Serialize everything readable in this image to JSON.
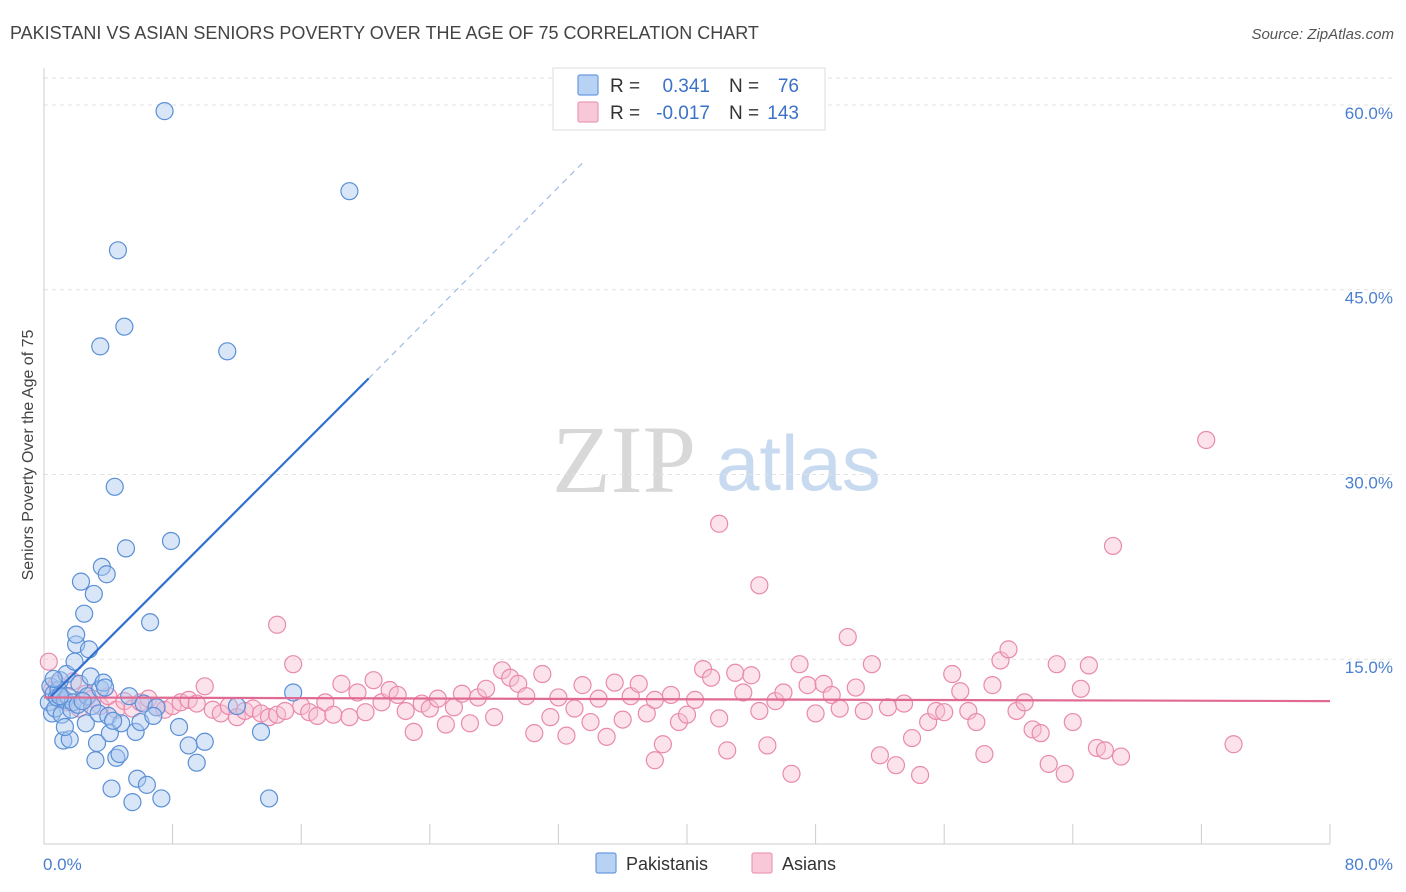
{
  "chart_data": {
    "type": "scatter",
    "title": "PAKISTANI VS ASIAN SENIORS POVERTY OVER THE AGE OF 75 CORRELATION CHART",
    "source": "Source: ZipAtlas.com",
    "ylabel": "Seniors Poverty Over the Age of 75",
    "xlabel": "",
    "xlim": [
      0,
      80
    ],
    "ylim": [
      0,
      63
    ],
    "x_tick_labels": {
      "min": "0.0%",
      "max": "80.0%"
    },
    "y_ticks": [
      {
        "value": 15,
        "label": "15.0%"
      },
      {
        "value": 30,
        "label": "30.0%"
      },
      {
        "value": 45,
        "label": "45.0%"
      },
      {
        "value": 60,
        "label": "60.0%"
      }
    ],
    "legend": {
      "rows": [
        {
          "r_label": "R =",
          "r_value": "0.341",
          "n_label": "N =",
          "n_value": "76"
        },
        {
          "r_label": "R =",
          "r_value": "-0.017",
          "n_label": "N =",
          "n_value": "143"
        }
      ],
      "position": "top-center"
    },
    "watermark": {
      "zip": "ZIP",
      "atlas": "atlas"
    },
    "colors": {
      "pakistanis_fill": "#a9c8f0",
      "pakistanis_stroke": "#5b8fd6",
      "pakistanis_line": "#2f6fd0",
      "asians_fill": "#f7bfd3",
      "asians_stroke": "#e98aab",
      "asians_line": "#e06a93"
    },
    "series": [
      {
        "name": "Pakistanis",
        "trend": {
          "x0": 0.3,
          "y0": 11.8,
          "x1": 20.2,
          "y1": 37.8,
          "dash_to_x": 33.5,
          "dash_to_y": 55.3
        },
        "points": [
          [
            0.3,
            11.5
          ],
          [
            0.4,
            12.8
          ],
          [
            0.5,
            10.6
          ],
          [
            0.6,
            12.2
          ],
          [
            0.7,
            11.0
          ],
          [
            0.8,
            11.9
          ],
          [
            0.9,
            12.5
          ],
          [
            1.0,
            13.3
          ],
          [
            1.1,
            10.5
          ],
          [
            1.2,
            8.4
          ],
          [
            1.3,
            11.7
          ],
          [
            1.4,
            13.8
          ],
          [
            1.5,
            12.0
          ],
          [
            1.6,
            8.5
          ],
          [
            1.7,
            10.9
          ],
          [
            1.8,
            11.5
          ],
          [
            1.9,
            14.8
          ],
          [
            2.0,
            16.2
          ],
          [
            2.1,
            11.3
          ],
          [
            2.2,
            13.0
          ],
          [
            2.3,
            21.3
          ],
          [
            2.5,
            18.7
          ],
          [
            2.6,
            9.8
          ],
          [
            2.7,
            12.0
          ],
          [
            2.8,
            15.8
          ],
          [
            2.9,
            13.6
          ],
          [
            3.0,
            11.2
          ],
          [
            3.1,
            20.3
          ],
          [
            3.2,
            6.8
          ],
          [
            3.3,
            8.2
          ],
          [
            3.4,
            10.6
          ],
          [
            3.5,
            12.6
          ],
          [
            3.6,
            22.5
          ],
          [
            3.7,
            13.1
          ],
          [
            3.8,
            12.7
          ],
          [
            3.9,
            21.9
          ],
          [
            4.0,
            10.4
          ],
          [
            4.1,
            9.0
          ],
          [
            4.2,
            4.5
          ],
          [
            4.4,
            29.0
          ],
          [
            4.5,
            7.0
          ],
          [
            4.6,
            48.2
          ],
          [
            4.7,
            7.3
          ],
          [
            4.8,
            9.8
          ],
          [
            5.0,
            42.0
          ],
          [
            5.1,
            24.0
          ],
          [
            5.3,
            12.0
          ],
          [
            5.5,
            3.4
          ],
          [
            5.7,
            9.1
          ],
          [
            5.8,
            5.3
          ],
          [
            6.0,
            9.9
          ],
          [
            6.2,
            11.4
          ],
          [
            6.4,
            4.8
          ],
          [
            6.6,
            18.0
          ],
          [
            7.0,
            11.1
          ],
          [
            7.3,
            3.7
          ],
          [
            7.5,
            59.5
          ],
          [
            7.9,
            24.6
          ],
          [
            8.4,
            9.5
          ],
          [
            9.0,
            8.0
          ],
          [
            9.5,
            6.6
          ],
          [
            10.0,
            8.3
          ],
          [
            11.4,
            40.0
          ],
          [
            13.5,
            9.1
          ],
          [
            14.0,
            3.7
          ],
          [
            15.5,
            12.3
          ],
          [
            3.5,
            40.4
          ],
          [
            6.8,
            10.4
          ],
          [
            1.0,
            12.0
          ],
          [
            2.4,
            11.6
          ],
          [
            0.6,
            13.4
          ],
          [
            1.3,
            9.5
          ],
          [
            2.0,
            17.0
          ],
          [
            19.0,
            53.0
          ],
          [
            12.0,
            11.2
          ],
          [
            4.3,
            10.0
          ]
        ]
      },
      {
        "name": "Asians",
        "trend": {
          "x0": 0,
          "y0": 11.9,
          "x1": 80,
          "y1": 11.6
        },
        "points": [
          [
            0.3,
            14.8
          ],
          [
            0.5,
            12.5
          ],
          [
            0.8,
            13.0
          ],
          [
            1.0,
            12.1
          ],
          [
            1.4,
            11.5
          ],
          [
            1.8,
            13.2
          ],
          [
            2.2,
            11.0
          ],
          [
            2.6,
            12.2
          ],
          [
            3.0,
            11.8
          ],
          [
            3.5,
            11.2
          ],
          [
            4.0,
            12.0
          ],
          [
            4.5,
            10.9
          ],
          [
            5.0,
            11.6
          ],
          [
            5.5,
            11.0
          ],
          [
            6.0,
            11.5
          ],
          [
            6.5,
            11.8
          ],
          [
            7.0,
            11.1
          ],
          [
            7.5,
            10.9
          ],
          [
            8.0,
            11.2
          ],
          [
            8.5,
            11.5
          ],
          [
            9.0,
            11.7
          ],
          [
            9.5,
            11.4
          ],
          [
            10.0,
            12.8
          ],
          [
            10.5,
            10.9
          ],
          [
            11.0,
            10.6
          ],
          [
            11.5,
            11.2
          ],
          [
            12.0,
            10.3
          ],
          [
            12.5,
            10.8
          ],
          [
            13.0,
            11.0
          ],
          [
            13.5,
            10.6
          ],
          [
            14.0,
            10.3
          ],
          [
            14.5,
            10.5
          ],
          [
            15.0,
            10.8
          ],
          [
            15.5,
            14.6
          ],
          [
            16.0,
            11.2
          ],
          [
            16.5,
            10.7
          ],
          [
            17.0,
            10.4
          ],
          [
            17.5,
            11.5
          ],
          [
            18.0,
            10.5
          ],
          [
            18.5,
            13.0
          ],
          [
            19.0,
            10.3
          ],
          [
            19.5,
            12.3
          ],
          [
            20.0,
            10.7
          ],
          [
            20.5,
            13.3
          ],
          [
            21.0,
            11.5
          ],
          [
            21.5,
            12.5
          ],
          [
            22.0,
            12.1
          ],
          [
            22.5,
            10.8
          ],
          [
            23.0,
            9.1
          ],
          [
            23.5,
            11.4
          ],
          [
            24.0,
            11.0
          ],
          [
            24.5,
            11.8
          ],
          [
            25.0,
            9.7
          ],
          [
            25.5,
            11.1
          ],
          [
            26.0,
            12.2
          ],
          [
            26.5,
            9.8
          ],
          [
            27.0,
            11.9
          ],
          [
            27.5,
            12.6
          ],
          [
            28.0,
            10.3
          ],
          [
            28.5,
            14.1
          ],
          [
            29.0,
            13.5
          ],
          [
            29.5,
            13.0
          ],
          [
            30.0,
            12.0
          ],
          [
            30.5,
            9.0
          ],
          [
            31.0,
            13.8
          ],
          [
            31.5,
            10.3
          ],
          [
            32.0,
            11.9
          ],
          [
            32.5,
            8.8
          ],
          [
            33.0,
            11.0
          ],
          [
            33.5,
            12.9
          ],
          [
            34.0,
            9.9
          ],
          [
            34.5,
            11.8
          ],
          [
            35.0,
            8.7
          ],
          [
            35.5,
            13.1
          ],
          [
            36.0,
            10.1
          ],
          [
            36.5,
            12.0
          ],
          [
            37.0,
            13.0
          ],
          [
            37.5,
            10.6
          ],
          [
            38.0,
            11.7
          ],
          [
            38.5,
            8.1
          ],
          [
            39.0,
            12.1
          ],
          [
            39.5,
            9.9
          ],
          [
            40.0,
            10.5
          ],
          [
            40.5,
            11.7
          ],
          [
            41.0,
            14.2
          ],
          [
            41.5,
            13.5
          ],
          [
            42.0,
            10.2
          ],
          [
            42.5,
            7.6
          ],
          [
            43.0,
            13.9
          ],
          [
            43.5,
            12.3
          ],
          [
            44.0,
            13.7
          ],
          [
            44.5,
            10.8
          ],
          [
            45.0,
            8.0
          ],
          [
            45.5,
            11.6
          ],
          [
            46.0,
            12.3
          ],
          [
            46.5,
            5.7
          ],
          [
            47.0,
            14.6
          ],
          [
            47.5,
            12.9
          ],
          [
            48.0,
            10.6
          ],
          [
            48.5,
            13.0
          ],
          [
            49.0,
            12.1
          ],
          [
            49.5,
            11.0
          ],
          [
            50.0,
            16.8
          ],
          [
            50.5,
            12.7
          ],
          [
            51.0,
            10.8
          ],
          [
            51.5,
            14.6
          ],
          [
            52.0,
            7.2
          ],
          [
            52.5,
            11.1
          ],
          [
            53.0,
            6.4
          ],
          [
            53.5,
            11.4
          ],
          [
            54.0,
            8.6
          ],
          [
            54.5,
            5.6
          ],
          [
            55.0,
            9.9
          ],
          [
            55.5,
            10.8
          ],
          [
            56.0,
            10.7
          ],
          [
            56.5,
            13.8
          ],
          [
            57.0,
            12.4
          ],
          [
            57.5,
            10.8
          ],
          [
            58.0,
            9.9
          ],
          [
            58.5,
            7.3
          ],
          [
            59.0,
            12.9
          ],
          [
            59.5,
            14.9
          ],
          [
            60.0,
            15.8
          ],
          [
            60.5,
            10.8
          ],
          [
            61.0,
            11.5
          ],
          [
            61.5,
            9.3
          ],
          [
            62.0,
            9.0
          ],
          [
            62.5,
            6.5
          ],
          [
            63.0,
            14.6
          ],
          [
            63.5,
            5.7
          ],
          [
            64.0,
            9.9
          ],
          [
            64.5,
            12.6
          ],
          [
            65.0,
            14.5
          ],
          [
            65.5,
            7.8
          ],
          [
            66.0,
            7.6
          ],
          [
            67.0,
            7.1
          ],
          [
            74.0,
            8.1
          ],
          [
            72.3,
            32.8
          ],
          [
            42.0,
            26.0
          ],
          [
            66.5,
            24.2
          ],
          [
            44.5,
            21.0
          ],
          [
            14.5,
            17.8
          ],
          [
            38.0,
            6.8
          ]
        ]
      }
    ],
    "bottom_legend": [
      "Pakistanis",
      "Asians"
    ]
  }
}
